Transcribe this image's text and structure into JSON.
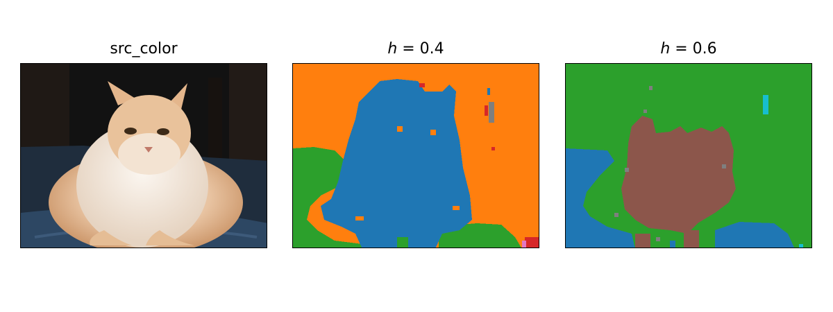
{
  "panels": [
    {
      "title": "src_color",
      "image": "photo of a fluffy orange-and-white cat lying on a blue cushion against a dark background"
    },
    {
      "title_var": "h",
      "title_rest": " = 0.4",
      "image": "segmentation map: orange background, blue cat region, green lower-left and lower-right regions, small red and gray specks"
    },
    {
      "title_var": "h",
      "title_rest": " = 0.6",
      "image": "segmentation map: green background, brown cat region, blue lower-left and lower-right regions, small gray specks and a cyan mark"
    }
  ],
  "colors": {
    "seg_blue": "#1f77b4",
    "seg_orange": "#ff7f0e",
    "seg_green": "#2ca02c",
    "seg_red": "#d62728",
    "seg_brown": "#8c564b",
    "seg_gray": "#7f7f7f",
    "seg_cyan": "#17becf"
  }
}
